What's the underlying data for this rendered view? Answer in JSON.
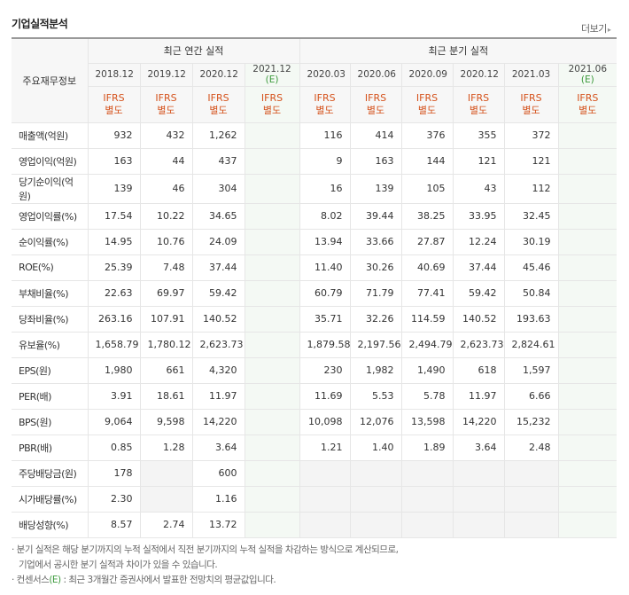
{
  "header": {
    "title": "기업실적분석",
    "more_label": "더보기"
  },
  "table": {
    "row_header": "주요재무정보",
    "group_annual": "최근 연간 실적",
    "group_quarter": "최근 분기 실적",
    "annual_periods": [
      "2018.12",
      "2019.12",
      "2020.12",
      "2021.12"
    ],
    "quarter_periods": [
      "2020.03",
      "2020.06",
      "2020.09",
      "2020.12",
      "2021.03",
      "2021.06"
    ],
    "estimate_mark": "(E)",
    "ifrs_line1": "IFRS",
    "ifrs_line2": "별도",
    "rows": [
      {
        "label": "매출액(억원)",
        "annual": [
          "932",
          "432",
          "1,262",
          ""
        ],
        "quarter": [
          "116",
          "414",
          "376",
          "355",
          "372",
          ""
        ]
      },
      {
        "label": "영업이익(억원)",
        "annual": [
          "163",
          "44",
          "437",
          ""
        ],
        "quarter": [
          "9",
          "163",
          "144",
          "121",
          "121",
          ""
        ]
      },
      {
        "label": "당기순이익(억원)",
        "annual": [
          "139",
          "46",
          "304",
          ""
        ],
        "quarter": [
          "16",
          "139",
          "105",
          "43",
          "112",
          ""
        ]
      },
      {
        "label": "영업이익률(%)",
        "annual": [
          "17.54",
          "10.22",
          "34.65",
          ""
        ],
        "quarter": [
          "8.02",
          "39.44",
          "38.25",
          "33.95",
          "32.45",
          ""
        ]
      },
      {
        "label": "순이익률(%)",
        "annual": [
          "14.95",
          "10.76",
          "24.09",
          ""
        ],
        "quarter": [
          "13.94",
          "33.66",
          "27.87",
          "12.24",
          "30.19",
          ""
        ]
      },
      {
        "label": "ROE(%)",
        "annual": [
          "25.39",
          "7.48",
          "37.44",
          ""
        ],
        "quarter": [
          "11.40",
          "30.26",
          "40.69",
          "37.44",
          "45.46",
          ""
        ]
      },
      {
        "label": "부채비율(%)",
        "annual": [
          "22.63",
          "69.97",
          "59.42",
          ""
        ],
        "quarter": [
          "60.79",
          "71.79",
          "77.41",
          "59.42",
          "50.84",
          ""
        ]
      },
      {
        "label": "당좌비율(%)",
        "annual": [
          "263.16",
          "107.91",
          "140.52",
          ""
        ],
        "quarter": [
          "35.71",
          "32.26",
          "114.59",
          "140.52",
          "193.63",
          ""
        ]
      },
      {
        "label": "유보율(%)",
        "annual": [
          "1,658.79",
          "1,780.12",
          "2,623.73",
          ""
        ],
        "quarter": [
          "1,879.58",
          "2,197.56",
          "2,494.79",
          "2,623.73",
          "2,824.61",
          ""
        ]
      },
      {
        "label": "EPS(원)",
        "annual": [
          "1,980",
          "661",
          "4,320",
          ""
        ],
        "quarter": [
          "230",
          "1,982",
          "1,490",
          "618",
          "1,597",
          ""
        ]
      },
      {
        "label": "PER(배)",
        "annual": [
          "3.91",
          "18.61",
          "11.97",
          ""
        ],
        "quarter": [
          "11.69",
          "5.53",
          "5.78",
          "11.97",
          "6.66",
          ""
        ]
      },
      {
        "label": "BPS(원)",
        "annual": [
          "9,064",
          "9,598",
          "14,220",
          ""
        ],
        "quarter": [
          "10,098",
          "12,076",
          "13,598",
          "14,220",
          "15,232",
          ""
        ]
      },
      {
        "label": "PBR(배)",
        "annual": [
          "0.85",
          "1.28",
          "3.64",
          ""
        ],
        "quarter": [
          "1.21",
          "1.40",
          "1.89",
          "3.64",
          "2.48",
          ""
        ]
      },
      {
        "label": "주당배당금(원)",
        "annual": [
          "178",
          "",
          "600",
          ""
        ],
        "quarter": [
          "",
          "",
          "",
          "",
          "",
          ""
        ]
      },
      {
        "label": "시가배당률(%)",
        "annual": [
          "2.30",
          "",
          "1.16",
          ""
        ],
        "quarter": [
          "",
          "",
          "",
          "",
          "",
          ""
        ]
      },
      {
        "label": "배당성향(%)",
        "annual": [
          "8.57",
          "2.74",
          "13.72",
          ""
        ],
        "quarter": [
          "",
          "",
          "",
          "",
          "",
          ""
        ]
      }
    ]
  },
  "notes": {
    "line1": "· 분기 실적은 해당 분기까지의 누적 실적에서 직전 분기까지의 누적 실적을 차감하는 방식으로 계산되므로,",
    "line2": "  기업에서 공시한 분기 실적과 차이가 있을 수 있습니다.",
    "line3_prefix": "· 컨센서스",
    "line3_mark": "(E)",
    "line3_suffix": " : 최근 3개월간 증권사에서 발표한 전망치의 평균값입니다."
  }
}
